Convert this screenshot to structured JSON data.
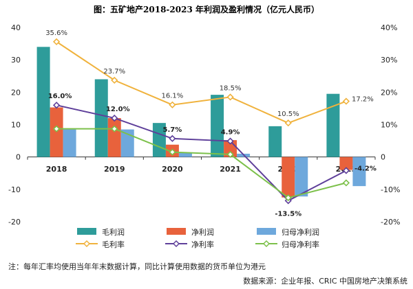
{
  "title": "图：五矿地产2018-2023 年利润及盈利情况（亿元人民币）",
  "note": "注：每年汇率均使用当年年末数据计算，同比计算使用数据的货币单位为港元",
  "source": "数据来源：企业年报、CRIC 中国房地产决策系统",
  "colors": {
    "gross_profit": "#2e9c9a",
    "net_profit": "#e8623c",
    "attributable_net_profit": "#6ea8dc",
    "gross_margin": "#f0b23c",
    "net_margin": "#5e3f9a",
    "attributable_margin": "#7cc04a"
  },
  "chart_data": {
    "type": "bar+line",
    "title": "图：五矿地产2018-2023 年利润及盈利情况（亿元人民币）",
    "categories": [
      "2018",
      "2019",
      "2020",
      "2021",
      "2022",
      "2023"
    ],
    "left_axis": {
      "ylim": [
        -20,
        40
      ],
      "ticks": [
        "40",
        "30",
        "20",
        "10",
        "0",
        "-10",
        "-20"
      ]
    },
    "right_axis": {
      "ylim": [
        -20,
        40
      ],
      "ticks": [
        "40%",
        "30%",
        "20%",
        "10%",
        "0",
        "-10%",
        "-20%"
      ]
    },
    "bar_series": [
      {
        "name": "毛利润",
        "values": [
          34,
          24,
          10.5,
          19.2,
          9.5,
          19.5
        ]
      },
      {
        "name": "净利润",
        "values": [
          15.3,
          12,
          3.8,
          5.2,
          -12.5,
          -4
        ]
      },
      {
        "name": "归母净利润",
        "values": [
          8.5,
          8.5,
          1.3,
          1,
          -12.2,
          -9
        ]
      }
    ],
    "line_series": [
      {
        "name": "毛利率",
        "values": [
          35.6,
          23.7,
          16.1,
          18.5,
          10.5,
          17.2
        ],
        "labels": [
          "35.6%",
          "23.7%",
          "16.1%",
          "18.5%",
          "10.5%",
          "17.2%"
        ]
      },
      {
        "name": "净利率",
        "values": [
          16.0,
          12.0,
          5.7,
          4.9,
          -13.5,
          -4.2
        ],
        "labels": [
          "16.0%",
          "12.0%",
          "5.7%",
          "4.9%",
          "-13.5%",
          "-4.2%"
        ]
      },
      {
        "name": "归母净利率",
        "values": [
          8.7,
          8.7,
          1.5,
          0.8,
          -12.6,
          -8.0
        ]
      }
    ],
    "legend": {
      "position": "bottom",
      "items": [
        {
          "name": "毛利润",
          "kind": "bar"
        },
        {
          "name": "净利润",
          "kind": "bar"
        },
        {
          "name": "归母净利润",
          "kind": "bar"
        },
        {
          "name": "毛利率",
          "kind": "line"
        },
        {
          "name": "净利率",
          "kind": "line"
        },
        {
          "name": "归母净利率",
          "kind": "line"
        }
      ]
    },
    "grid": false
  }
}
